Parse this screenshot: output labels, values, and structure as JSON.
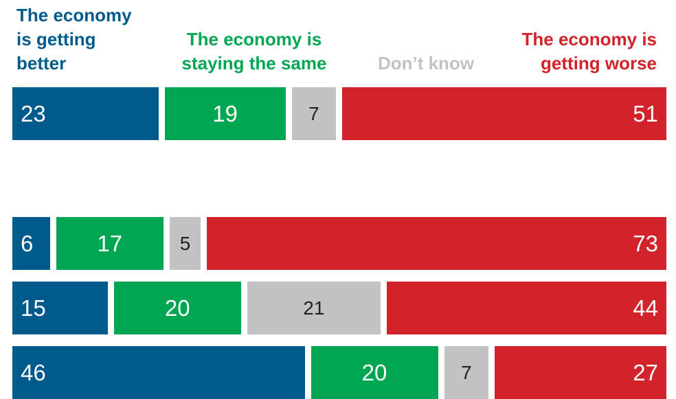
{
  "chart_data": {
    "type": "stacked-bar",
    "orientation": "horizontal",
    "categories": [
      null,
      null,
      null,
      null
    ],
    "series": [
      {
        "name": "The economy is getting better",
        "color": "#005a8b",
        "values": [
          23,
          6,
          15,
          46
        ]
      },
      {
        "name": "The economy is staying the same",
        "color": "#00a651",
        "values": [
          19,
          17,
          20,
          20
        ]
      },
      {
        "name": "Don’t know",
        "color": "#c2c2c2",
        "values": [
          7,
          5,
          21,
          7
        ]
      },
      {
        "name": "The economy is getting worse",
        "color": "#d2232a",
        "values": [
          51,
          73,
          44,
          27
        ]
      }
    ]
  }
}
